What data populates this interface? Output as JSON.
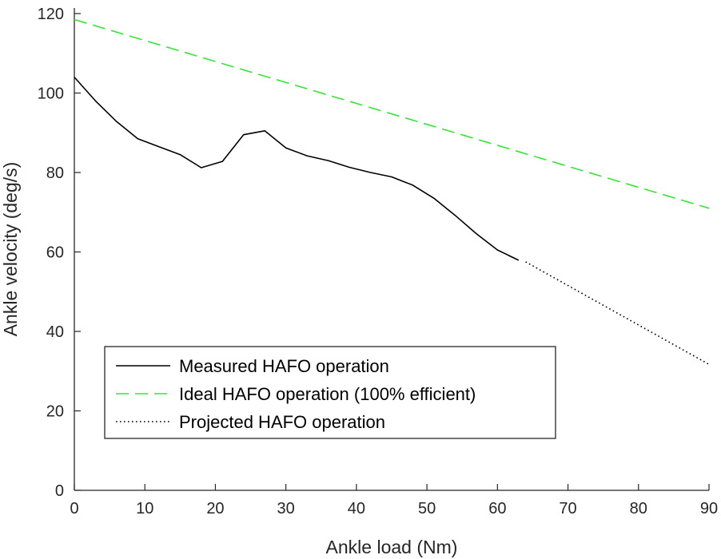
{
  "chart_data": {
    "type": "line",
    "title": "",
    "xlabel": "Ankle load (Nm)",
    "ylabel": "Ankle velocity (deg/s)",
    "xlim": [
      0,
      90
    ],
    "ylim": [
      0,
      120
    ],
    "xticks": [
      "0",
      "10",
      "20",
      "30",
      "40",
      "50",
      "60",
      "70",
      "80",
      "90"
    ],
    "yticks": [
      "0",
      "20",
      "40",
      "60",
      "80",
      "100",
      "120"
    ],
    "grid": false,
    "legend_position": "lower-left",
    "series": [
      {
        "name": "Measured HAFO operation",
        "style": "solid",
        "color": "#000000",
        "x": [
          0,
          3,
          6,
          9,
          12,
          15,
          18,
          21,
          24,
          27,
          30,
          33,
          36,
          39,
          42,
          45,
          48,
          51,
          54,
          57,
          60,
          63
        ],
        "y": [
          104,
          98,
          92.8,
          88.5,
          86.5,
          84.5,
          81.2,
          82.8,
          89.5,
          90.5,
          86.2,
          84.2,
          83,
          81.3,
          80,
          78.9,
          76.8,
          73.5,
          69.2,
          64.6,
          60.5,
          57.9
        ]
      },
      {
        "name": "Ideal HAFO operation (100% efficient)",
        "style": "dashed",
        "color": "#33e633",
        "x": [
          0,
          90
        ],
        "y": [
          118.5,
          71
        ]
      },
      {
        "name": "Projected HAFO operation",
        "style": "dotted",
        "color": "#000000",
        "x": [
          64,
          90
        ],
        "y": [
          57.5,
          31.7
        ]
      }
    ]
  }
}
